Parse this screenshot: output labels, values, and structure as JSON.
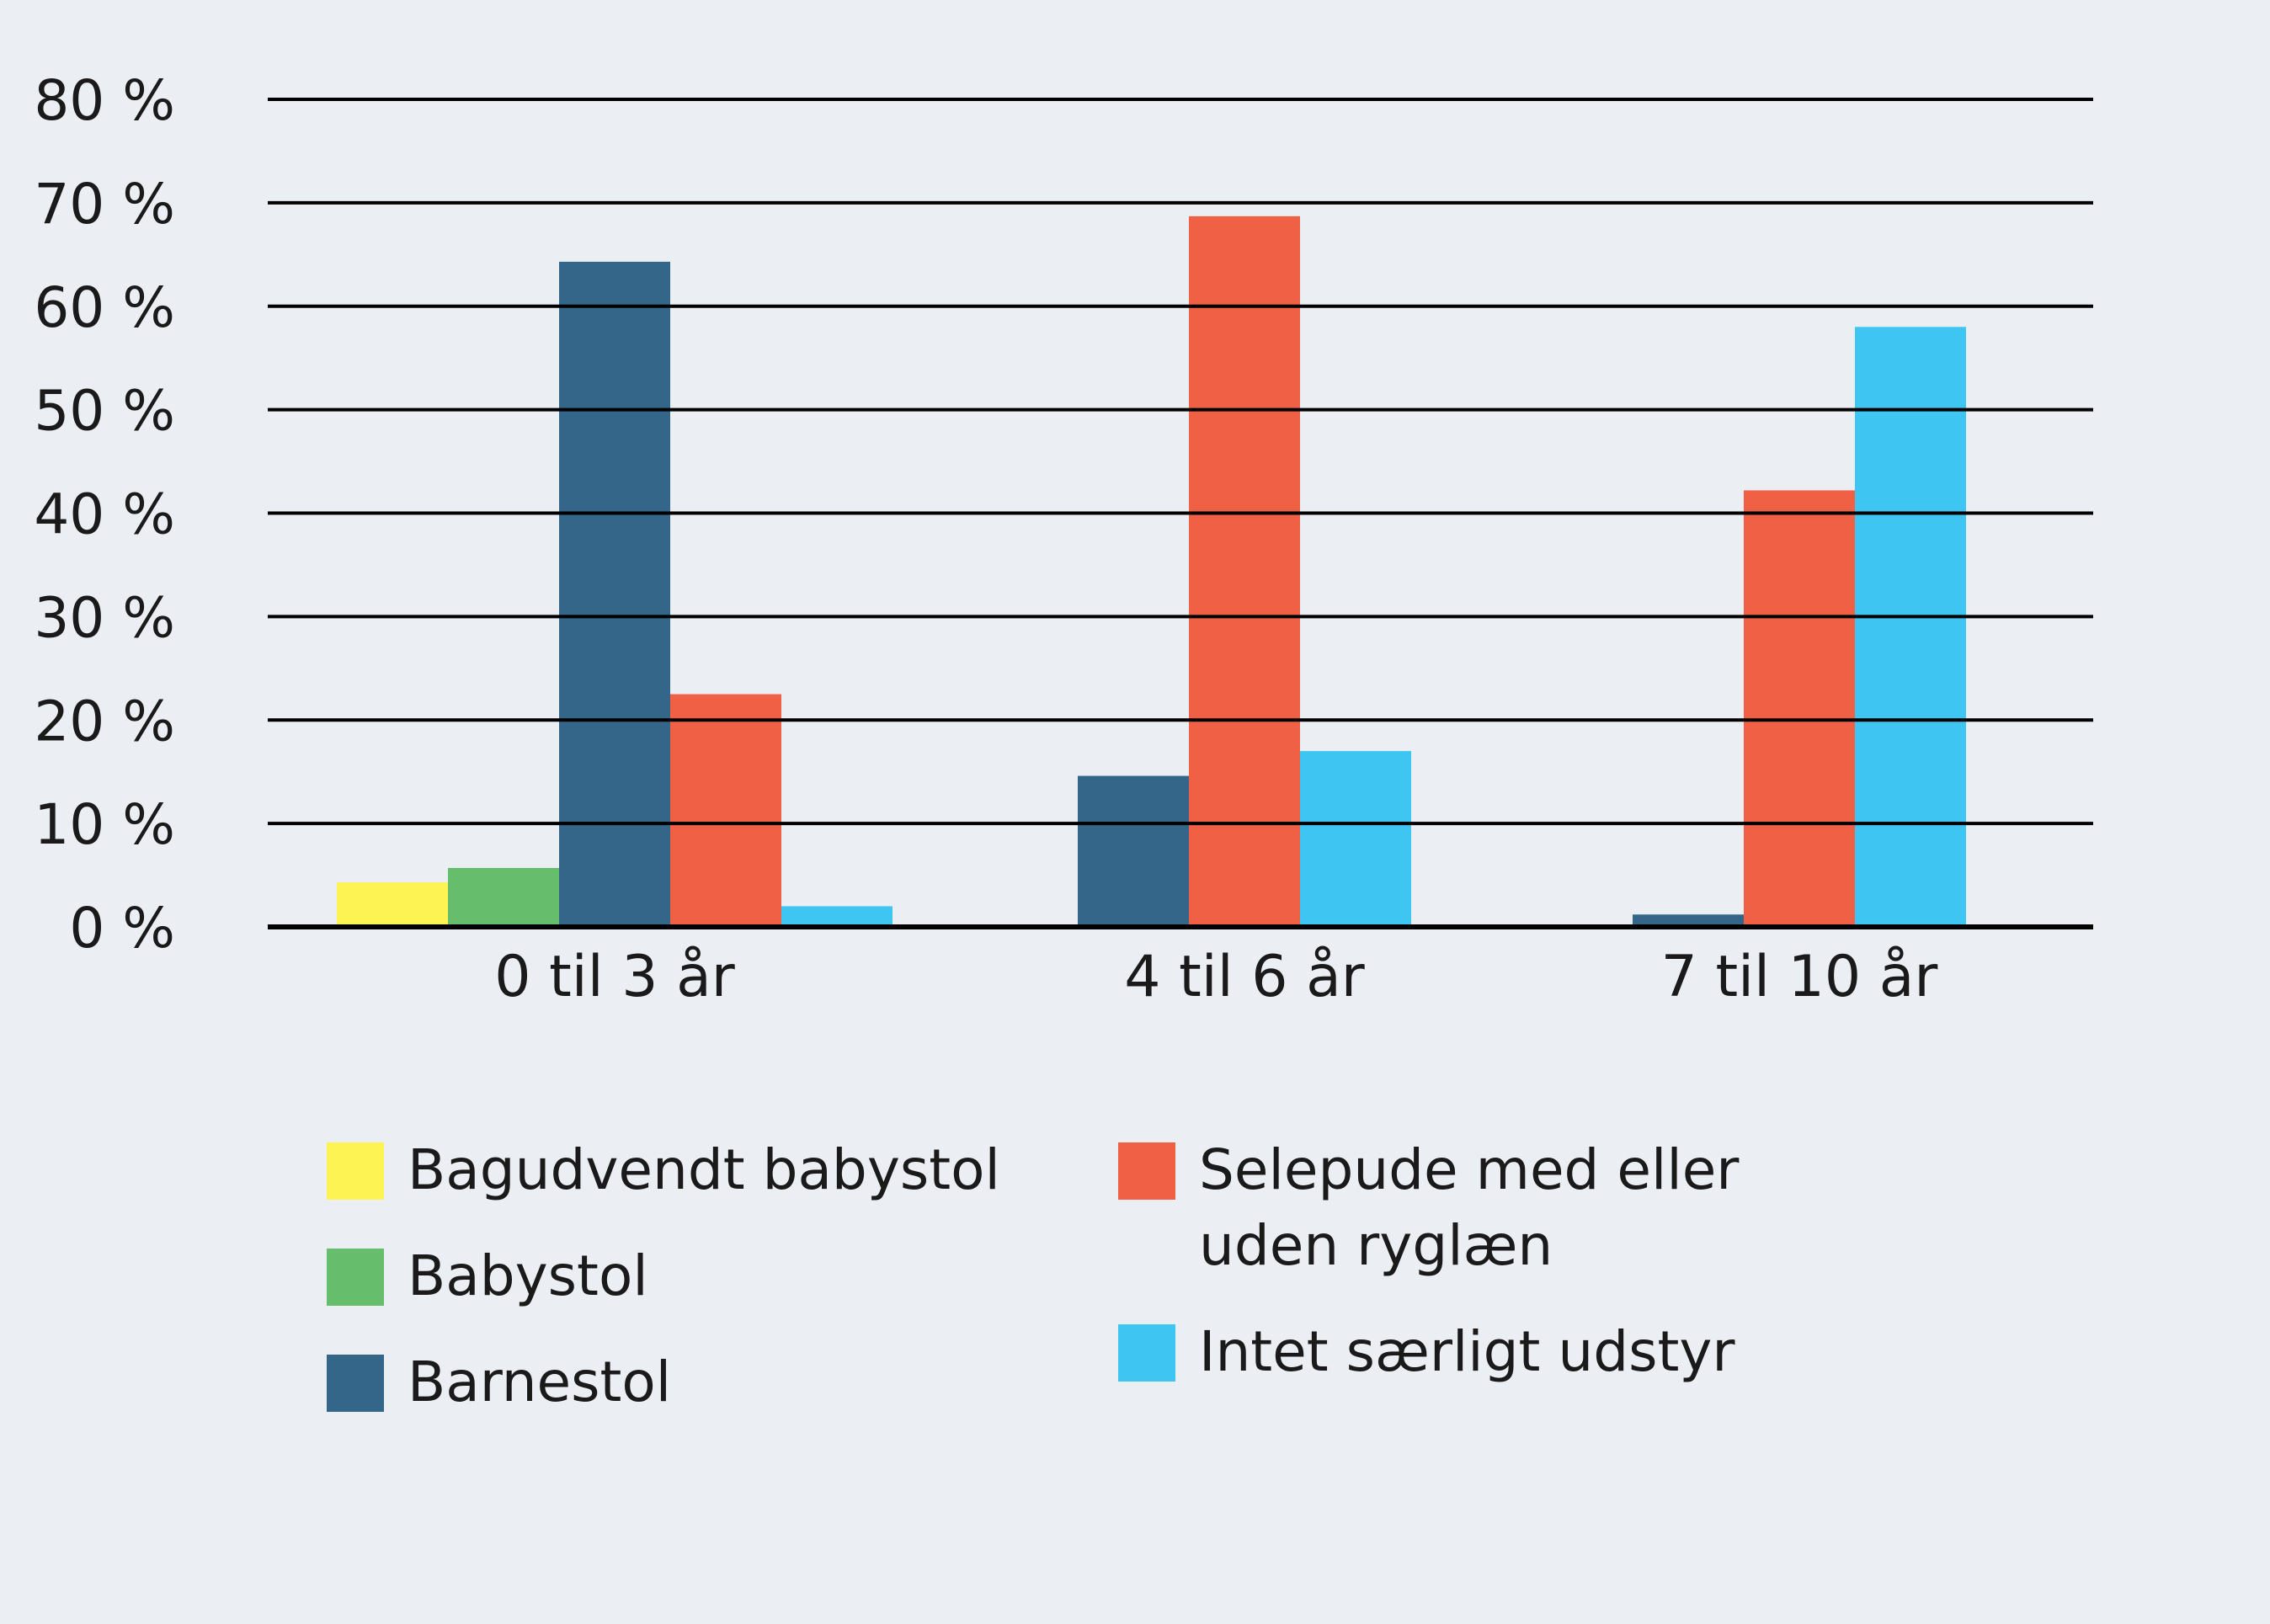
{
  "chart_data": {
    "type": "bar",
    "title": "",
    "xlabel": "",
    "ylabel": "",
    "ylim": [
      0,
      80
    ],
    "yticks": [
      0,
      10,
      20,
      30,
      40,
      50,
      60,
      70,
      80
    ],
    "ytick_labels": [
      "0 %",
      "10 %",
      "20 %",
      "30 %",
      "40 %",
      "50 %",
      "60 %",
      "70 %",
      "80 %"
    ],
    "grid": true,
    "legend_position": "bottom",
    "categories": [
      "0 til 3 år",
      "4 til 6 år",
      "7 til 10 år"
    ],
    "series": [
      {
        "name": "Bagudvendt babystol",
        "color": "#fdf352",
        "values": [
          4.3,
          null,
          null
        ]
      },
      {
        "name": "Babystol",
        "color": "#66bd6b",
        "values": [
          5.7,
          null,
          null
        ]
      },
      {
        "name": "Barnestol",
        "color": "#336689",
        "values": [
          64.3,
          14.6,
          1.2
        ]
      },
      {
        "name": "Selepude med eller\nuden ryglæn",
        "color": "#f06044",
        "values": [
          22.5,
          68.7,
          42.2
        ]
      },
      {
        "name": "Intet særligt udstyr",
        "color": "#3ec5f2",
        "values": [
          2.0,
          17.0,
          58.0
        ]
      }
    ]
  },
  "legend": {
    "columns": [
      [
        0,
        1,
        2
      ],
      [
        3,
        4
      ]
    ]
  }
}
